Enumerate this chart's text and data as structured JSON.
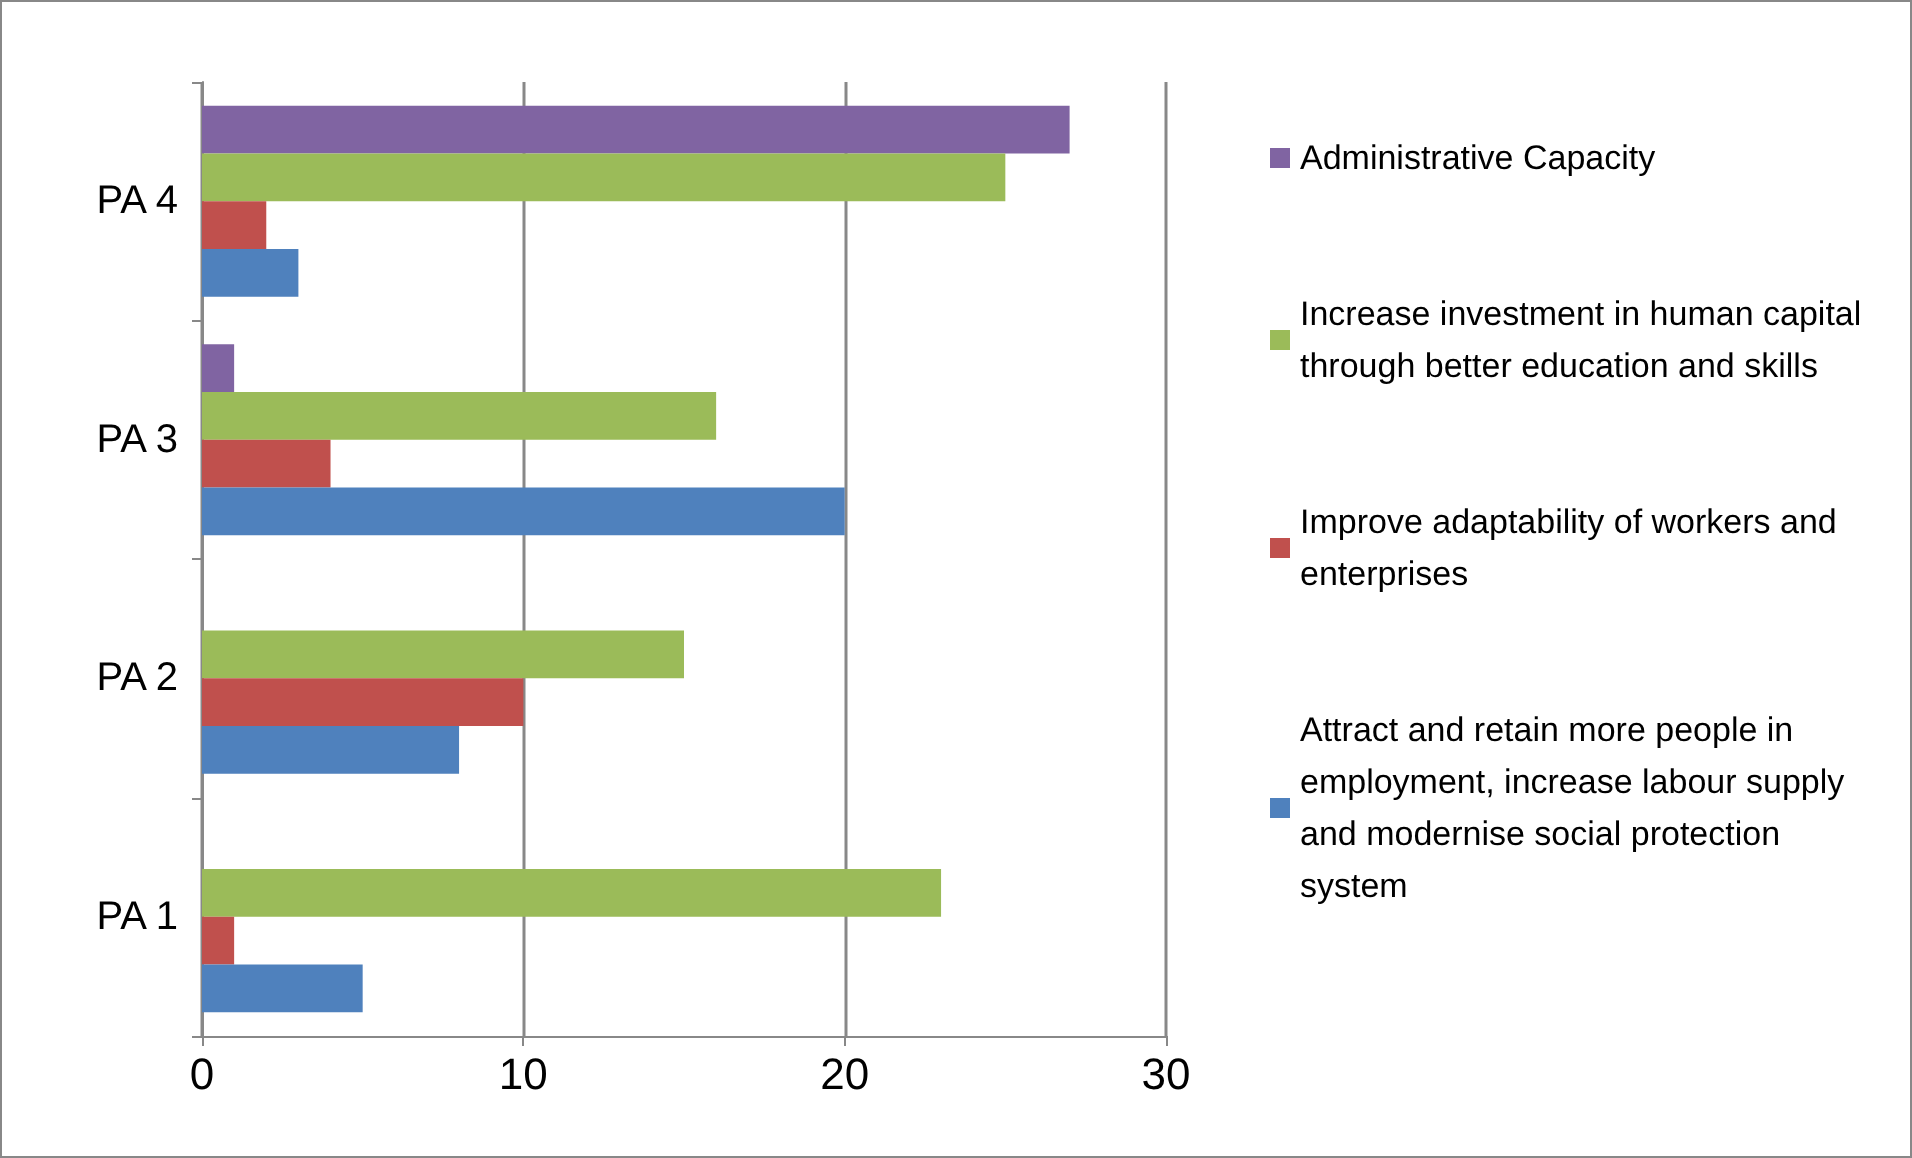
{
  "chart_data": {
    "type": "bar",
    "orientation": "horizontal",
    "categories": [
      "PA 4",
      "PA 3",
      "PA 2",
      "PA 1"
    ],
    "series": [
      {
        "name": "Administrative Capacity",
        "color": "#8064a2",
        "values": [
          27,
          1,
          null,
          null
        ]
      },
      {
        "name": "Increase investment in human capital through better education and skills",
        "color": "#9bbb59",
        "values": [
          25,
          16,
          15,
          23
        ]
      },
      {
        "name": "Improve adaptability of workers and enterprises",
        "color": "#c0504d",
        "values": [
          2,
          4,
          10,
          1
        ]
      },
      {
        "name": "Attract and retain more people in employment, increase labour supply and modernise social protection system",
        "color": "#4f81bd",
        "values": [
          3,
          20,
          8,
          5
        ]
      }
    ],
    "xlim": [
      0,
      30
    ],
    "xticks": [
      0,
      10,
      20,
      30
    ],
    "grid": "x",
    "legend": "right"
  }
}
